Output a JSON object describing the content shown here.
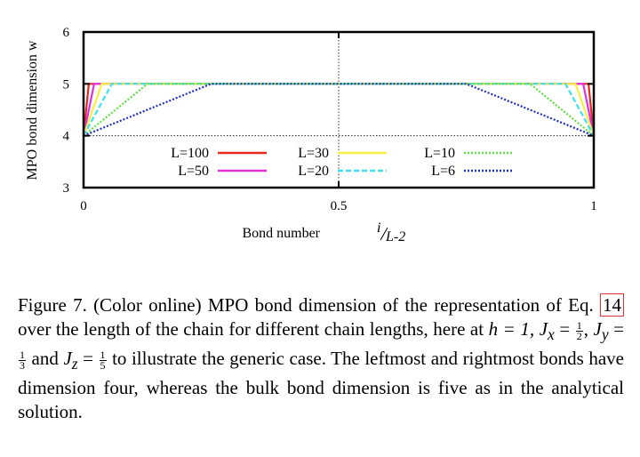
{
  "chart_data": {
    "type": "line",
    "ylabel": "MPO bond dimension w",
    "xlabel_main": "Bond number",
    "xlabel_frac_num": "i",
    "xlabel_frac_den": "L-2",
    "xlim": [
      0,
      1
    ],
    "ylim": [
      3,
      6
    ],
    "xticks": [
      0,
      0.5,
      1
    ],
    "xtick_labels": [
      "0",
      "0.5",
      "1"
    ],
    "yticks": [
      3,
      4,
      5,
      6
    ],
    "ytick_labels": [
      "3",
      "4",
      "5",
      "6"
    ],
    "legend_placement": "inside-bottom",
    "series": [
      {
        "name": "L=100",
        "color": "#e8281e",
        "dash": "solid",
        "x": [
          0,
          0.0102,
          0.9898,
          1
        ],
        "y": [
          4,
          5,
          5,
          4
        ]
      },
      {
        "name": "L=50",
        "color": "#e030e0",
        "dash": "solid",
        "x": [
          0,
          0.0208,
          0.9792,
          1
        ],
        "y": [
          4,
          5,
          5,
          4
        ]
      },
      {
        "name": "L=30",
        "color": "#f8f040",
        "dash": "solid",
        "x": [
          0,
          0.0357,
          0.9643,
          1
        ],
        "y": [
          4,
          5,
          5,
          4
        ]
      },
      {
        "name": "L=20",
        "color": "#40e0f0",
        "dash": "dashed",
        "x": [
          0,
          0.0556,
          0.9444,
          1
        ],
        "y": [
          4,
          5,
          5,
          4
        ]
      },
      {
        "name": "L=10",
        "color": "#60e040",
        "dash": "dotted",
        "x": [
          0,
          0.125,
          0.875,
          1
        ],
        "y": [
          4,
          5,
          5,
          4
        ]
      },
      {
        "name": "L=6",
        "color": "#2030c8",
        "dash": "dotted",
        "x": [
          0,
          0.25,
          0.75,
          1
        ],
        "y": [
          4,
          5,
          5,
          4
        ]
      }
    ]
  },
  "caption": {
    "part1": "Figure 7. (Color online) MPO bond dimension of the representation of Eq. ",
    "eq_ref": "14",
    "part2": " over the length of the chain for different chain lengths, here at ",
    "h_eq": "h = 1, ",
    "jx": "J",
    "jx_sub": "x",
    "eq": " = ",
    "jx_num": "1",
    "jx_den": "2",
    "jy": "J",
    "jy_sub": "y",
    "jy_num": "1",
    "jy_den": "3",
    "and": " and ",
    "jz": "J",
    "jz_sub": "z",
    "jz_num": "1",
    "jz_den": "5",
    "part3": " to illustrate the generic case. The leftmost and rightmost bonds have dimension four, whereas the bulk bond dimension is five as in the analytical solution."
  }
}
